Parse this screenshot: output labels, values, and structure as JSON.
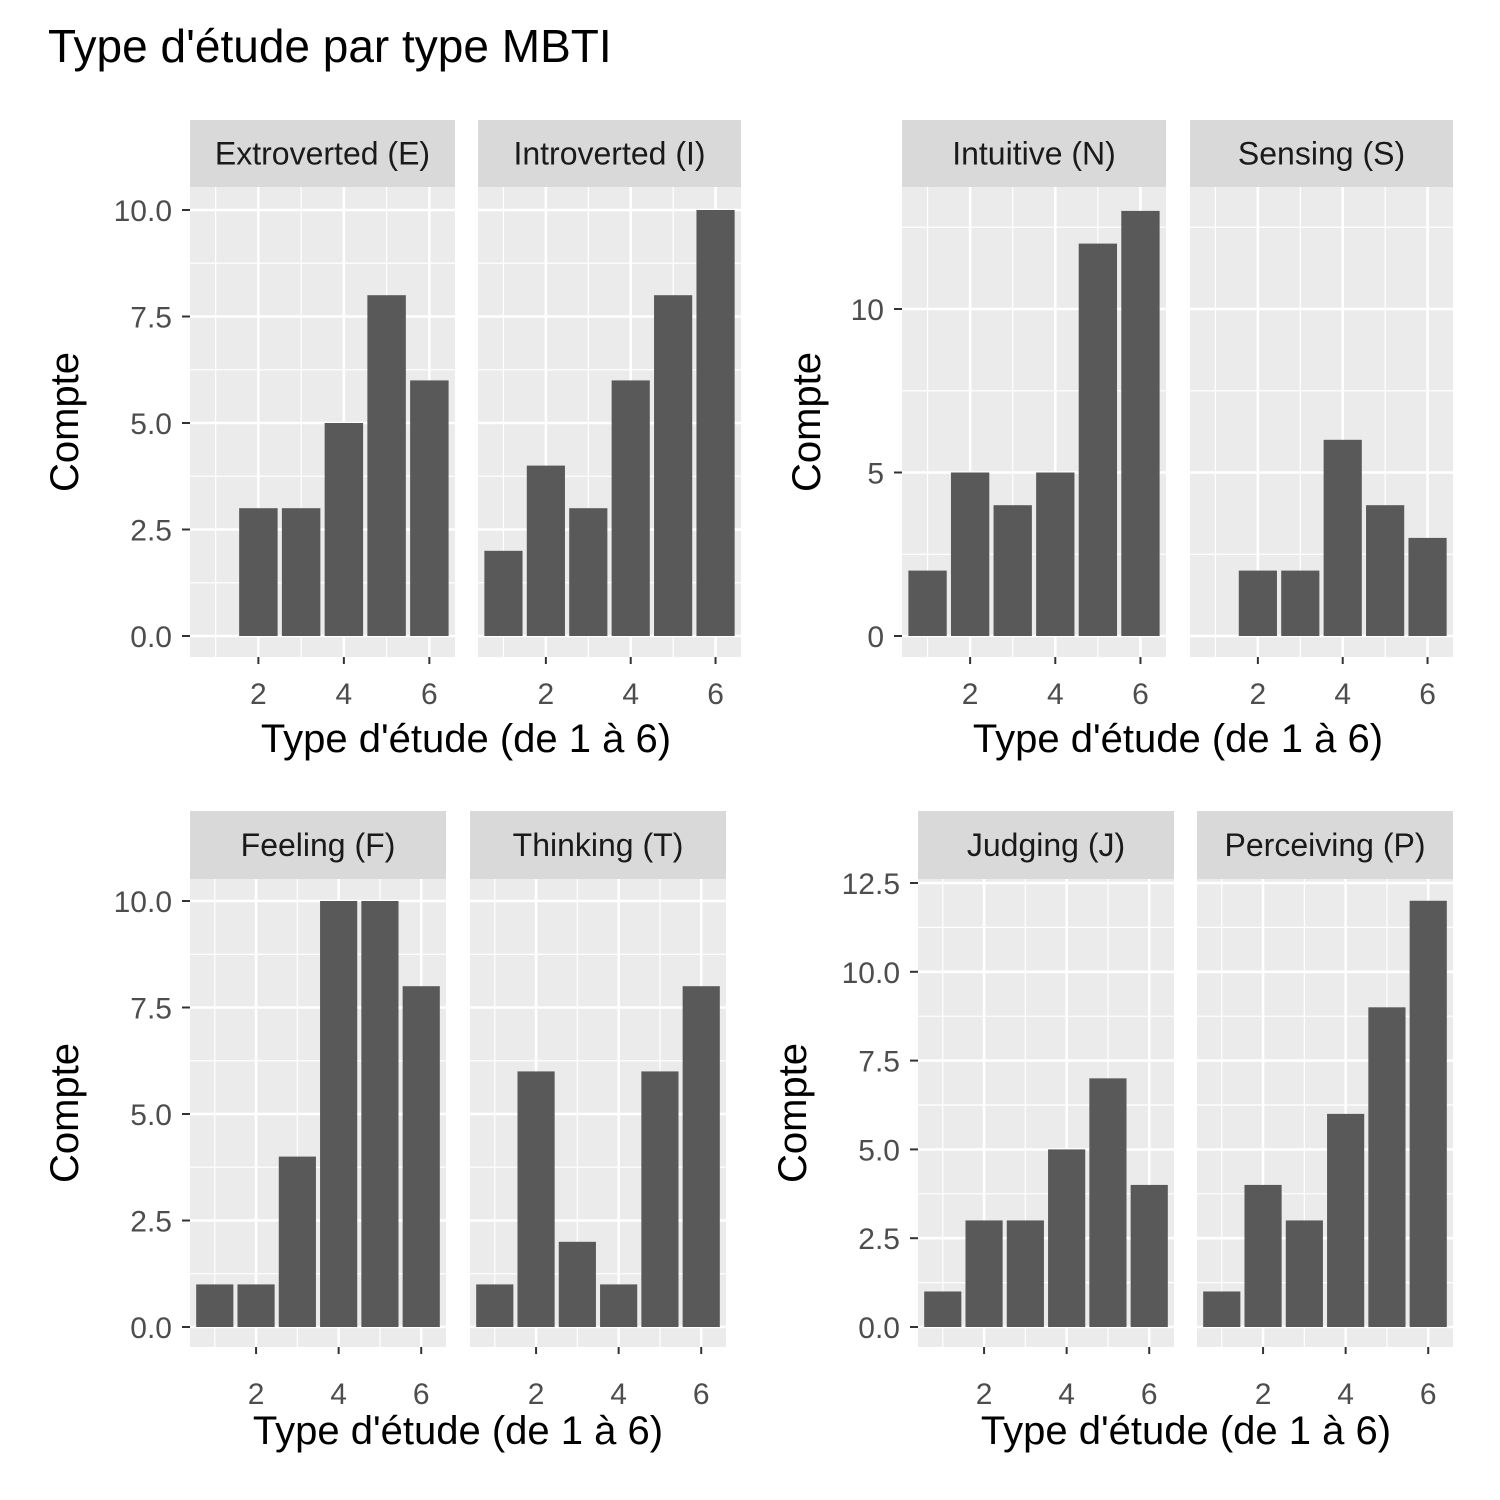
{
  "title": "Type d'étude par type MBTI",
  "colors": {
    "panel_bg": "#ebebeb",
    "strip_bg": "#d9d9d9",
    "grid": "#ffffff",
    "bar": "#595959",
    "tick": "#333333",
    "tick_label": "#4d4d4d",
    "text": "#000000"
  },
  "chart_data": [
    {
      "type": "bar",
      "xlabel": "Type d'étude (de 1 à 6)",
      "ylabel": "Compte",
      "xlim": [
        0.4,
        6.6
      ],
      "x_ticks": [
        2,
        4,
        6
      ],
      "ylim": [
        0,
        12
      ],
      "y_ticks": [
        "0.0",
        "2.5",
        "5.0",
        "7.5",
        "10.0"
      ],
      "panels": [
        {
          "name": "Extroverted (E)",
          "x": [
            2,
            3,
            4,
            5,
            6
          ],
          "values": [
            3,
            3,
            5,
            8,
            6
          ]
        },
        {
          "name": "Introverted (I)",
          "x": [
            1,
            2,
            3,
            4,
            5,
            6
          ],
          "values": [
            2,
            4,
            3,
            6,
            8,
            10
          ]
        }
      ]
    },
    {
      "type": "bar",
      "xlabel": "Type d'étude (de 1 à 6)",
      "ylabel": "Compte",
      "xlim": [
        0.4,
        6.6
      ],
      "x_ticks": [
        2,
        4,
        6
      ],
      "ylim": [
        0,
        15
      ],
      "y_ticks": [
        "0",
        "5",
        "10"
      ],
      "panels": [
        {
          "name": "Intuitive (N)",
          "x": [
            1,
            2,
            3,
            4,
            5,
            6
          ],
          "values": [
            2,
            5,
            4,
            5,
            12,
            13
          ]
        },
        {
          "name": "Sensing (S)",
          "x": [
            2,
            3,
            4,
            5,
            6
          ],
          "values": [
            2,
            2,
            6,
            4,
            3
          ]
        }
      ]
    },
    {
      "type": "bar",
      "xlabel": "Type d'étude (de 1 à 6)",
      "ylabel": "Compte",
      "xlim": [
        0.4,
        6.6
      ],
      "x_ticks": [
        2,
        4,
        6
      ],
      "ylim": [
        0,
        12
      ],
      "y_ticks": [
        "0.0",
        "2.5",
        "5.0",
        "7.5",
        "10.0"
      ],
      "panels": [
        {
          "name": "Feeling (F)",
          "x": [
            1,
            2,
            3,
            4,
            5,
            6
          ],
          "values": [
            1,
            1,
            4,
            10,
            10,
            8
          ]
        },
        {
          "name": "Thinking (T)",
          "x": [
            1,
            2,
            3,
            4,
            5,
            6
          ],
          "values": [
            1,
            6,
            2,
            1,
            6,
            8
          ]
        }
      ]
    },
    {
      "type": "bar",
      "xlabel": "Type d'étude (de 1 à 6)",
      "ylabel": "Compte",
      "xlim": [
        0.4,
        6.6
      ],
      "x_ticks": [
        2,
        4,
        6
      ],
      "ylim": [
        0,
        14.5
      ],
      "y_ticks": [
        "0.0",
        "2.5",
        "5.0",
        "7.5",
        "10.0",
        "12.5"
      ],
      "panels": [
        {
          "name": "Judging (J)",
          "x": [
            1,
            2,
            3,
            4,
            5,
            6
          ],
          "values": [
            1,
            3,
            3,
            5,
            7,
            4
          ]
        },
        {
          "name": "Perceiving (P)",
          "x": [
            1,
            2,
            3,
            4,
            5,
            6
          ],
          "values": [
            1,
            4,
            3,
            6,
            9,
            12
          ]
        }
      ]
    }
  ]
}
